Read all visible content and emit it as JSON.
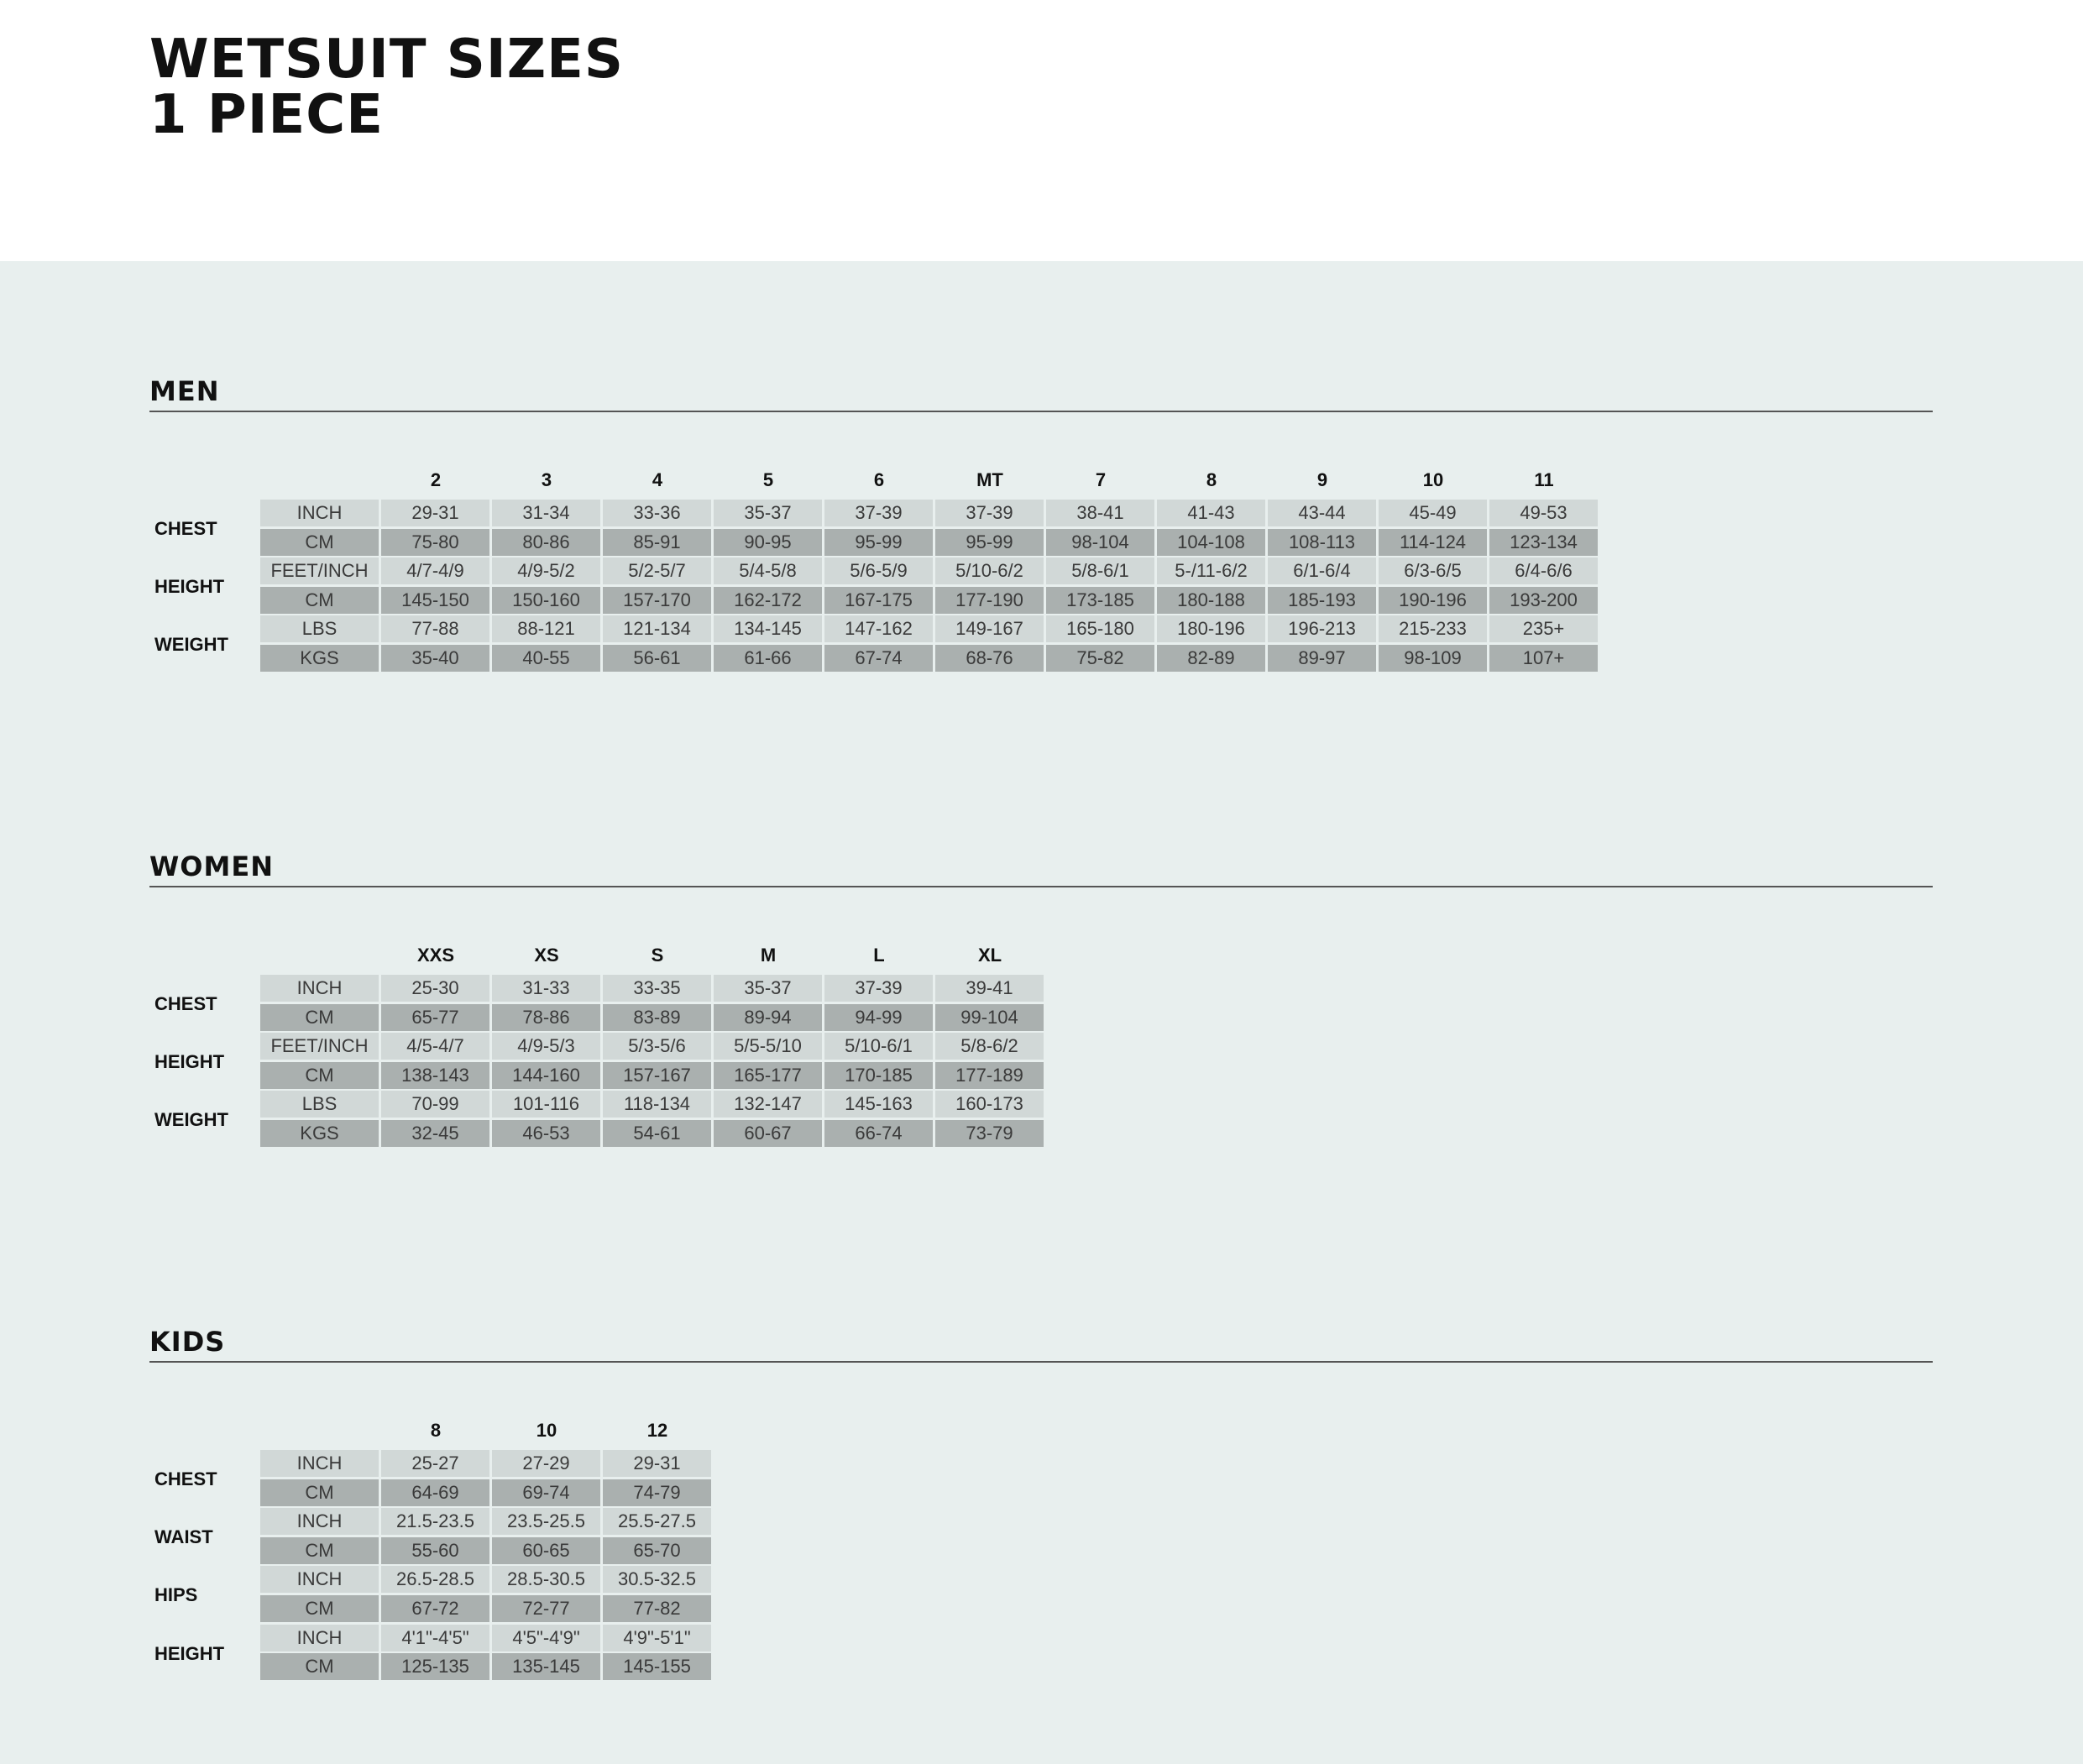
{
  "title": [
    "WETSUIT SIZES",
    "1 PIECE"
  ],
  "colors": {
    "background": "#e8efee",
    "row_light": "#d1d8d7",
    "row_dark": "#aab0af"
  },
  "sections": [
    {
      "name": "MEN",
      "sizes": [
        "2",
        "3",
        "4",
        "5",
        "6",
        "MT",
        "7",
        "8",
        "9",
        "10",
        "11"
      ],
      "groups": [
        {
          "label": "CHEST",
          "rows": [
            {
              "unit": "INCH",
              "values": [
                "29-31",
                "31-34",
                "33-36",
                "35-37",
                "37-39",
                "37-39",
                "38-41",
                "41-43",
                "43-44",
                "45-49",
                "49-53"
              ]
            },
            {
              "unit": "CM",
              "values": [
                "75-80",
                "80-86",
                "85-91",
                "90-95",
                "95-99",
                "95-99",
                "98-104",
                "104-108",
                "108-113",
                "114-124",
                "123-134"
              ]
            }
          ]
        },
        {
          "label": "HEIGHT",
          "rows": [
            {
              "unit": "FEET/INCH",
              "values": [
                "4/7-4/9",
                "4/9-5/2",
                "5/2-5/7",
                "5/4-5/8",
                "5/6-5/9",
                "5/10-6/2",
                "5/8-6/1",
                "5-/11-6/2",
                "6/1-6/4",
                "6/3-6/5",
                "6/4-6/6"
              ]
            },
            {
              "unit": "CM",
              "values": [
                "145-150",
                "150-160",
                "157-170",
                "162-172",
                "167-175",
                "177-190",
                "173-185",
                "180-188",
                "185-193",
                "190-196",
                "193-200"
              ]
            }
          ]
        },
        {
          "label": "WEIGHT",
          "rows": [
            {
              "unit": "LBS",
              "values": [
                "77-88",
                "88-121",
                "121-134",
                "134-145",
                "147-162",
                "149-167",
                "165-180",
                "180-196",
                "196-213",
                "215-233",
                "235+"
              ]
            },
            {
              "unit": "KGS",
              "values": [
                "35-40",
                "40-55",
                "56-61",
                "61-66",
                "67-74",
                "68-76",
                "75-82",
                "82-89",
                "89-97",
                "98-109",
                "107+"
              ]
            }
          ]
        }
      ]
    },
    {
      "name": "WOMEN",
      "sizes": [
        "XXS",
        "XS",
        "S",
        "M",
        "L",
        "XL"
      ],
      "groups": [
        {
          "label": "CHEST",
          "rows": [
            {
              "unit": "INCH",
              "values": [
                "25-30",
                "31-33",
                "33-35",
                "35-37",
                "37-39",
                "39-41"
              ]
            },
            {
              "unit": "CM",
              "values": [
                "65-77",
                "78-86",
                "83-89",
                "89-94",
                "94-99",
                "99-104"
              ]
            }
          ]
        },
        {
          "label": "HEIGHT",
          "rows": [
            {
              "unit": "FEET/INCH",
              "values": [
                "4/5-4/7",
                "4/9-5/3",
                "5/3-5/6",
                "5/5-5/10",
                "5/10-6/1",
                "5/8-6/2"
              ]
            },
            {
              "unit": "CM",
              "values": [
                "138-143",
                "144-160",
                "157-167",
                "165-177",
                "170-185",
                "177-189"
              ]
            }
          ]
        },
        {
          "label": "WEIGHT",
          "rows": [
            {
              "unit": "LBS",
              "values": [
                "70-99",
                "101-116",
                "118-134",
                "132-147",
                "145-163",
                "160-173"
              ]
            },
            {
              "unit": "KGS",
              "values": [
                "32-45",
                "46-53",
                "54-61",
                "60-67",
                "66-74",
                "73-79"
              ]
            }
          ]
        }
      ]
    },
    {
      "name": "KIDS",
      "sizes": [
        "8",
        "10",
        "12"
      ],
      "groups": [
        {
          "label": "CHEST",
          "rows": [
            {
              "unit": "INCH",
              "values": [
                "25-27",
                "27-29",
                "29-31"
              ]
            },
            {
              "unit": "CM",
              "values": [
                "64-69",
                "69-74",
                "74-79"
              ]
            }
          ]
        },
        {
          "label": "WAIST",
          "rows": [
            {
              "unit": "INCH",
              "values": [
                "21.5-23.5",
                "23.5-25.5",
                "25.5-27.5"
              ]
            },
            {
              "unit": "CM",
              "values": [
                "55-60",
                "60-65",
                "65-70"
              ]
            }
          ]
        },
        {
          "label": "HIPS",
          "rows": [
            {
              "unit": "INCH",
              "values": [
                "26.5-28.5",
                "28.5-30.5",
                "30.5-32.5"
              ]
            },
            {
              "unit": "CM",
              "values": [
                "67-72",
                "72-77",
                "77-82"
              ]
            }
          ]
        },
        {
          "label": "HEIGHT",
          "rows": [
            {
              "unit": "INCH",
              "values": [
                "4'1\"-4'5\"",
                "4'5\"-4'9\"",
                "4'9\"-5'1\""
              ]
            },
            {
              "unit": "CM",
              "values": [
                "125-135",
                "135-145",
                "145-155"
              ]
            }
          ]
        }
      ]
    }
  ]
}
